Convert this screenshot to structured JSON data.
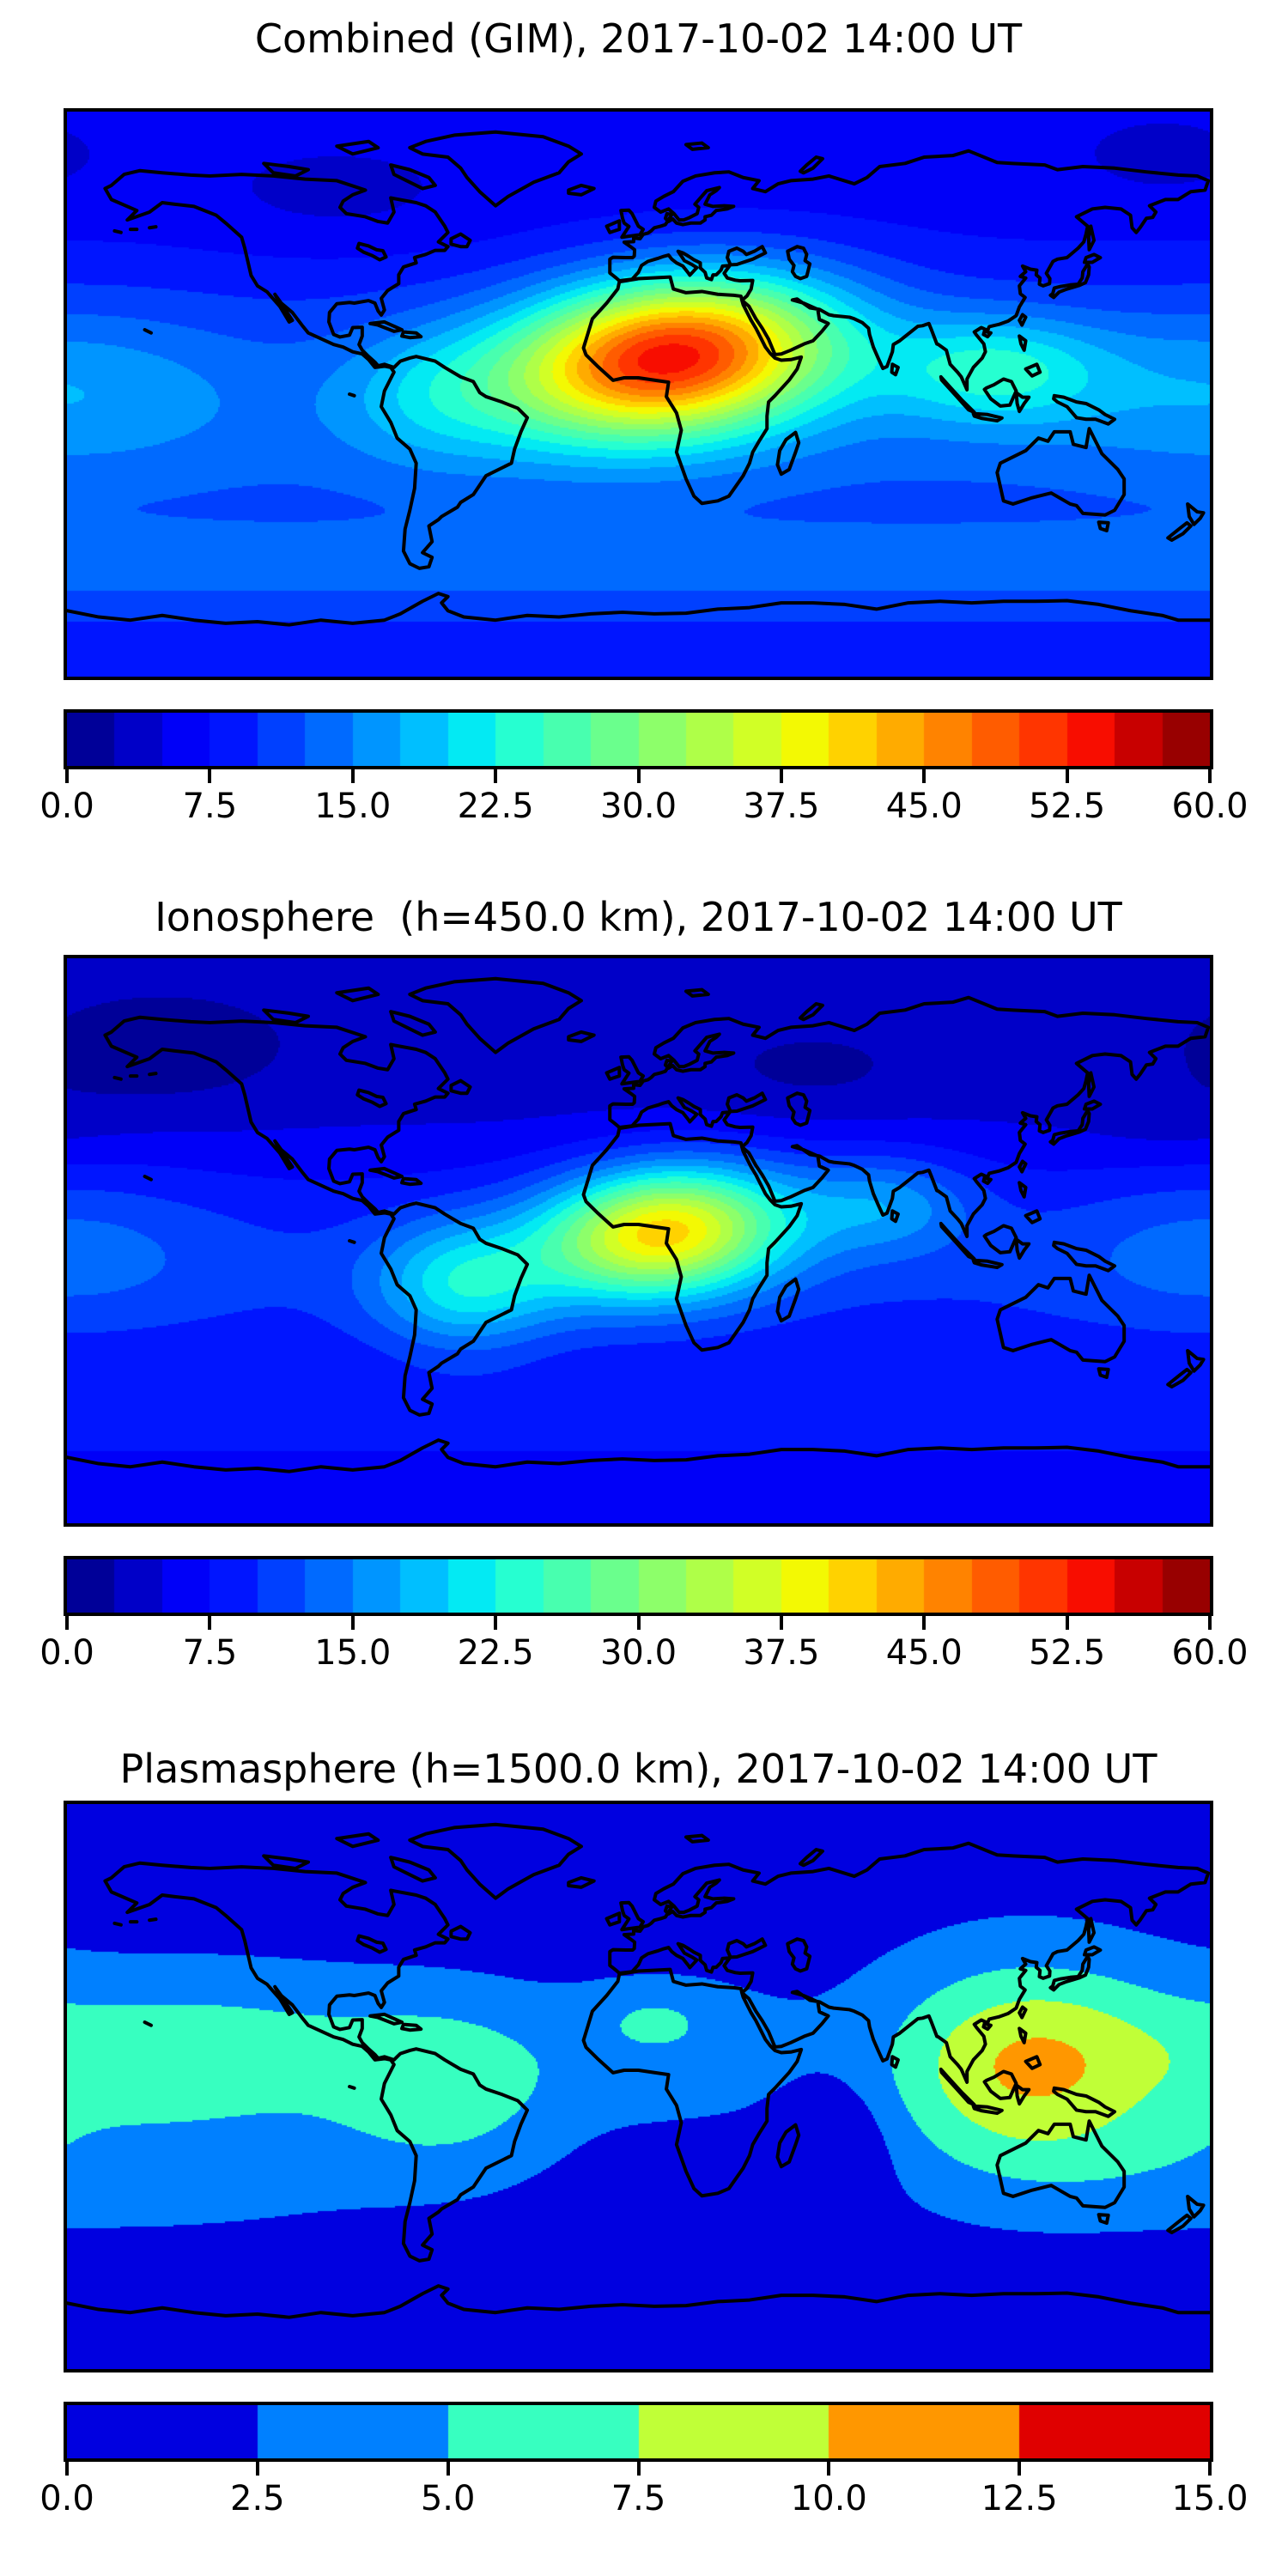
{
  "figure": {
    "background_color": "#ffffff",
    "text_color": "#000000",
    "coastline_color": "#000000"
  },
  "panels": [
    {
      "id": "combined",
      "title": "Combined (GIM), 2017-10-02 14:00 UT",
      "colorbar": {
        "orientation": "horizontal",
        "vmin": 0.0,
        "vmax": 60.0,
        "band_step": 2.5,
        "n_bands": 24,
        "tick_labels": [
          "0.0",
          "7.5",
          "15.0",
          "22.5",
          "30.0",
          "37.5",
          "45.0",
          "52.5",
          "60.0"
        ]
      }
    },
    {
      "id": "ionosphere",
      "title": "Ionosphere  (h=450.0 km), 2017-10-02 14:00 UT",
      "colorbar": {
        "orientation": "horizontal",
        "vmin": 0.0,
        "vmax": 60.0,
        "band_step": 2.5,
        "n_bands": 24,
        "tick_labels": [
          "0.0",
          "7.5",
          "15.0",
          "22.5",
          "30.0",
          "37.5",
          "45.0",
          "52.5",
          "60.0"
        ]
      }
    },
    {
      "id": "plasmasphere",
      "title": "Plasmasphere (h=1500.0 km), 2017-10-02 14:00 UT",
      "colorbar": {
        "orientation": "horizontal",
        "vmin": 0.0,
        "vmax": 15.0,
        "band_step": 2.5,
        "n_bands": 6,
        "tick_labels": [
          "0.0",
          "2.5",
          "5.0",
          "7.5",
          "10.0",
          "12.5",
          "15.0"
        ],
        "band_colors_hex": [
          "#0000e0",
          "#0080ff",
          "#37ffc0",
          "#c0ff37",
          "#ff9700",
          "#e00000"
        ]
      }
    }
  ],
  "colormap": {
    "name": "jet",
    "red": [
      [
        0,
        0
      ],
      [
        0.35,
        0
      ],
      [
        0.66,
        1
      ],
      [
        0.89,
        1
      ],
      [
        1,
        0.5
      ]
    ],
    "green": [
      [
        0,
        0
      ],
      [
        0.125,
        0
      ],
      [
        0.375,
        1
      ],
      [
        0.64,
        1
      ],
      [
        0.91,
        0
      ],
      [
        1,
        0
      ]
    ],
    "blue": [
      [
        0,
        0.5
      ],
      [
        0.11,
        1
      ],
      [
        0.34,
        1
      ],
      [
        0.65,
        0
      ],
      [
        1,
        0
      ]
    ]
  },
  "chart_data": [
    {
      "type": "heatmap",
      "variant": "filled_contour_world_map",
      "title": "Combined (GIM), 2017-10-02 14:00 UT",
      "projection": {
        "type": "equirectangular",
        "lon_range": [
          -180,
          180
        ],
        "lat_range": [
          -90,
          90
        ]
      },
      "value_range": [
        0,
        60
      ],
      "contour_step": 2.5,
      "n_bands": 24,
      "colormap": "jet",
      "colorbar_ticks": [
        0.0,
        7.5,
        15.0,
        22.5,
        30.0,
        37.5,
        45.0,
        52.5,
        60.0
      ],
      "legend_position": "bottom",
      "grid": false,
      "peak": {
        "value": 54,
        "lon": 10,
        "lat": 12,
        "region": "north-central Africa"
      },
      "field_model_gaussians": [
        {
          "kind": "const",
          "v": 5.2
        },
        {
          "kind": "lat",
          "amp": 8,
          "lat0": -8,
          "slat": 50
        },
        {
          "kind": "lat",
          "amp": 5,
          "lat0": -56,
          "slat": 16
        },
        {
          "kind": "lat",
          "amp": 3,
          "lat0": -90,
          "slat": 22
        },
        {
          "kind": "blob",
          "amp": 42,
          "lon0": 10,
          "slon": 50,
          "lat0": 12,
          "slat": 24,
          "tilt": 0.09
        },
        {
          "kind": "blob",
          "amp": 11,
          "lon0": 112,
          "slon": 34,
          "lat0": 8,
          "slat": 17
        },
        {
          "kind": "blob",
          "amp": 5.5,
          "lon0": -65,
          "slon": 30,
          "lat0": 0,
          "slat": 22
        },
        {
          "kind": "blob",
          "amp": 4.5,
          "lon0": -178,
          "slon": 50,
          "lat0": 3,
          "slat": 26
        },
        {
          "kind": "blob",
          "amp": -1.8,
          "lon0": -95,
          "slon": 45,
          "lat0": 60,
          "slat": 16
        },
        {
          "kind": "blob",
          "amp": -1.2,
          "lon0": 165,
          "slon": 30,
          "lat0": 72,
          "slat": 14
        }
      ]
    },
    {
      "type": "heatmap",
      "variant": "filled_contour_world_map",
      "title": "Ionosphere  (h=450.0 km), 2017-10-02 14:00 UT",
      "projection": {
        "type": "equirectangular",
        "lon_range": [
          -180,
          180
        ],
        "lat_range": [
          -90,
          90
        ]
      },
      "value_range": [
        0,
        60
      ],
      "contour_step": 2.5,
      "n_bands": 24,
      "colormap": "jet",
      "colorbar_ticks": [
        0.0,
        7.5,
        15.0,
        22.5,
        30.0,
        37.5,
        45.0,
        52.5,
        60.0
      ],
      "legend_position": "bottom",
      "grid": false,
      "peak": {
        "value": 41,
        "lon": 8,
        "lat": 3,
        "region": "equatorial west-central Africa"
      },
      "field_model_gaussians": [
        {
          "kind": "const",
          "v": 3
        },
        {
          "kind": "lat",
          "amp": 7,
          "lat0": -10,
          "slat": 42
        },
        {
          "kind": "lat",
          "amp": 4,
          "lat0": -57,
          "slat": 15
        },
        {
          "kind": "lat",
          "amp": 2,
          "lat0": -90,
          "slat": 25
        },
        {
          "kind": "blob",
          "amp": 32,
          "lon0": 8,
          "slon": 38,
          "lat0": 3,
          "slat": 20,
          "tilt": 0.07
        },
        {
          "kind": "blob",
          "amp": 12,
          "lon0": -55,
          "slon": 28,
          "lat0": -14,
          "slat": 20
        },
        {
          "kind": "blob",
          "amp": 8,
          "lon0": 78,
          "slon": 28,
          "lat0": 12,
          "slat": 16
        },
        {
          "kind": "blob",
          "amp": 4,
          "lon0": 180,
          "slon": 48,
          "lat0": -2,
          "slat": 25
        },
        {
          "kind": "blob",
          "amp": -2.2,
          "lon0": -150,
          "slon": 40,
          "lat0": 57,
          "slat": 18
        },
        {
          "kind": "blob",
          "amp": -1.6,
          "lon0": 55,
          "slon": 35,
          "lat0": 52,
          "slat": 14
        },
        {
          "kind": "blob",
          "amp": -1.3,
          "lon0": 168,
          "slon": 28,
          "lat0": 38,
          "slat": 13
        }
      ]
    },
    {
      "type": "heatmap",
      "variant": "filled_contour_world_map",
      "title": "Plasmasphere (h=1500.0 km), 2017-10-02 14:00 UT",
      "projection": {
        "type": "equirectangular",
        "lon_range": [
          -180,
          180
        ],
        "lat_range": [
          -90,
          90
        ]
      },
      "value_range": [
        0,
        15
      ],
      "contour_step": 2.5,
      "n_bands": 6,
      "colormap": "jet",
      "colorbar_ticks": [
        0.0,
        2.5,
        5.0,
        7.5,
        10.0,
        12.5,
        15.0
      ],
      "legend_position": "bottom",
      "grid": false,
      "peak": {
        "value": 9.9,
        "lon": 122,
        "lat": 6,
        "region": "southeast Asia / west Pacific"
      },
      "field_model_gaussians": [
        {
          "kind": "const",
          "v": 1.5
        },
        {
          "kind": "blob",
          "amp": 5.2,
          "lon0": -140,
          "slon": 70,
          "lat0": 10,
          "slat": 25
        },
        {
          "kind": "blob",
          "amp": 4.5,
          "lon0": -60,
          "slon": 35,
          "lat0": 0,
          "slat": 26
        },
        {
          "kind": "blob",
          "amp": 2.6,
          "lon0": 10,
          "slon": 40,
          "lat0": 12,
          "slat": 22
        },
        {
          "kind": "blob",
          "amp": 8.4,
          "lon0": 122,
          "slon": 45,
          "lat0": 6,
          "slat": 33
        },
        {
          "kind": "blob",
          "amp": 2.2,
          "lon0": -160,
          "slon": 80,
          "lat0": -28,
          "slat": 18
        },
        {
          "kind": "blob",
          "amp": 1.8,
          "lon0": 5,
          "slon": 18,
          "lat0": 22,
          "slat": 9
        },
        {
          "kind": "blob",
          "amp": -2.6,
          "lon0": 63,
          "slon": 16,
          "lat0": -18,
          "slat": 20
        }
      ]
    }
  ],
  "map_features": [
    "world-coastlines",
    "antarctica-coast",
    "caspian-sea",
    "black-sea",
    "great-lakes"
  ]
}
